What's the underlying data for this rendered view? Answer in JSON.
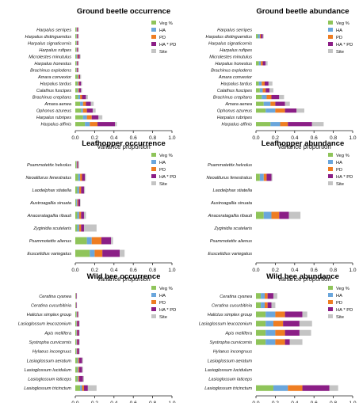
{
  "chart_data": [
    {
      "type": "bar",
      "stacked": true,
      "orientation": "horizontal",
      "title": "Ground beetle occurrence",
      "xlabel": "Variance proportion",
      "ylabel": "",
      "xlim": [
        0,
        1
      ],
      "xticks": [
        "0.0",
        "0.2",
        "0.4",
        "0.6",
        "0.8",
        "1.0"
      ],
      "legend_position": "top-right",
      "categories": [
        "Harpalus serripes",
        "Harpalus distinguendus",
        "Harpalus signaticornis",
        "Harpalus rufipes",
        "Microlestes minutulus",
        "Harpalus honestus",
        "Brachinus explodens",
        "Amara convexior",
        "Harpalus tardus",
        "Calathus fuscipes",
        "Brachinus crepitans",
        "Amara aenea",
        "Ophonus azureus",
        "Harpalus rubripes",
        "Harpalus affinis"
      ],
      "series": [
        {
          "name": "Veg %",
          "color": "#8fc45a",
          "values": [
            0.01,
            0.01,
            0.01,
            0.01,
            0.01,
            0.01,
            0.01,
            0.02,
            0.02,
            0.02,
            0.03,
            0.05,
            0.06,
            0.08,
            0.1
          ]
        },
        {
          "name": "HA",
          "color": "#6aa6dc",
          "values": [
            0.005,
            0.005,
            0.005,
            0.005,
            0.01,
            0.005,
            0.005,
            0.01,
            0.01,
            0.01,
            0.02,
            0.03,
            0.02,
            0.04,
            0.05
          ]
        },
        {
          "name": "PD",
          "color": "#ee7d22",
          "values": [
            0.005,
            0.005,
            0.005,
            0.005,
            0.01,
            0.005,
            0.005,
            0.01,
            0.01,
            0.01,
            0.02,
            0.03,
            0.04,
            0.05,
            0.08
          ]
        },
        {
          "name": "HA * PD",
          "color": "#8b1e86",
          "values": [
            0.01,
            0.01,
            0.01,
            0.01,
            0.015,
            0.01,
            0.01,
            0.01,
            0.02,
            0.02,
            0.04,
            0.05,
            0.06,
            0.07,
            0.18
          ]
        },
        {
          "name": "Site",
          "color": "#c4c4c4",
          "values": [
            0.005,
            0.005,
            0.005,
            0.005,
            0.01,
            0.005,
            0.005,
            0.01,
            0.01,
            0.01,
            0.02,
            0.03,
            0.03,
            0.04,
            0.02
          ]
        }
      ]
    },
    {
      "type": "bar",
      "stacked": true,
      "orientation": "horizontal",
      "title": "Ground beetle abundance",
      "xlabel": "Variance proportion",
      "ylabel": "",
      "xlim": [
        0,
        1
      ],
      "xticks": [
        "0.0",
        "0.2",
        "0.4",
        "0.6",
        "0.8",
        "1.0"
      ],
      "legend_position": "top-right",
      "categories": [
        "Harpalus serripes",
        "Harpalus distinguendus",
        "Harpalus signaticornis",
        "Harpalus rufipes",
        "Microlestes minutulus",
        "Harpalus honestus",
        "Brachinus explodens",
        "Amara convexior",
        "Harpalus tardus",
        "Calathus fuscipes",
        "Brachinus crepitans",
        "Amara aenea",
        "Ophonus azureus",
        "Harpalus rubripes",
        "Harpalus affinis"
      ],
      "series": [
        {
          "name": "Veg %",
          "color": "#8fc45a",
          "values": [
            0,
            0.02,
            0,
            0,
            0,
            0.03,
            0,
            0,
            0.03,
            0.04,
            0.06,
            0.08,
            0.1,
            0,
            0.15
          ]
        },
        {
          "name": "HA",
          "color": "#6aa6dc",
          "values": [
            0,
            0.02,
            0,
            0,
            0,
            0.02,
            0,
            0,
            0.03,
            0.03,
            0.05,
            0.07,
            0.1,
            0,
            0.1
          ]
        },
        {
          "name": "PD",
          "color": "#ee7d22",
          "values": [
            0,
            0.01,
            0,
            0,
            0,
            0.02,
            0,
            0,
            0.03,
            0.03,
            0.05,
            0.05,
            0.1,
            0,
            0.08
          ]
        },
        {
          "name": "HA * PD",
          "color": "#8b1e86",
          "values": [
            0,
            0.02,
            0,
            0,
            0,
            0.03,
            0,
            0,
            0.04,
            0.04,
            0.08,
            0.1,
            0.12,
            0,
            0.25
          ]
        },
        {
          "name": "Site",
          "color": "#c4c4c4",
          "values": [
            0,
            0.01,
            0,
            0,
            0,
            0.02,
            0,
            0,
            0.04,
            0.04,
            0.05,
            0.05,
            0.08,
            0,
            0.12
          ]
        }
      ]
    },
    {
      "type": "bar",
      "stacked": true,
      "orientation": "horizontal",
      "title": "Leafhopper occurrence",
      "xlabel": "Variance proportion",
      "ylabel": "",
      "xlim": [
        0,
        1
      ],
      "xticks": [
        "0.0",
        "0.2",
        "0.4",
        "0.6",
        "0.8",
        "1.0"
      ],
      "legend_position": "top-right",
      "categories": [
        "Psammotettix helvolus",
        "Neoaliturus fenestratus",
        "Laodelphax stiatella",
        "Austroagallia sinuata",
        "Anaceratagallia ribauti",
        "Zyginidia scutelaris",
        "Psammotettix alienus",
        "Euscelidius variegatus"
      ],
      "series": [
        {
          "name": "Veg %",
          "color": "#8fc45a",
          "values": [
            0.01,
            0.03,
            0.02,
            0.01,
            0.02,
            0.02,
            0.12,
            0.15
          ]
        },
        {
          "name": "HA",
          "color": "#6aa6dc",
          "values": [
            0.005,
            0.02,
            0.02,
            0.01,
            0.02,
            0.02,
            0.05,
            0.05
          ]
        },
        {
          "name": "PD",
          "color": "#ee7d22",
          "values": [
            0.005,
            0.02,
            0.02,
            0.01,
            0.02,
            0.02,
            0.1,
            0.08
          ]
        },
        {
          "name": "HA * PD",
          "color": "#8b1e86",
          "values": [
            0.01,
            0.03,
            0.03,
            0.02,
            0.03,
            0.03,
            0.1,
            0.18
          ]
        },
        {
          "name": "Site",
          "color": "#c4c4c4",
          "values": [
            0.01,
            0.01,
            0.01,
            0.005,
            0.02,
            0.13,
            0.02,
            0.05
          ]
        }
      ]
    },
    {
      "type": "bar",
      "stacked": true,
      "orientation": "horizontal",
      "title": "Leafhopper abundance",
      "xlabel": "Variance proportion",
      "ylabel": "",
      "xlim": [
        0,
        1
      ],
      "xticks": [
        "0.0",
        "0.2",
        "0.4",
        "0.6",
        "0.8",
        "1.0"
      ],
      "legend_position": "top-right",
      "categories": [
        "Psammotettix helvolus",
        "Neoaliturus fenestratus",
        "Laodelphax stiatella",
        "Austroagallia sinuata",
        "Anaceratagallia ribauti",
        "Zyginidia scutelaris",
        "Psammotettix alienus",
        "Euscelidius variegatus"
      ],
      "series": [
        {
          "name": "Veg %",
          "color": "#8fc45a",
          "values": [
            0,
            0.04,
            0,
            0,
            0.08,
            0,
            0,
            0
          ]
        },
        {
          "name": "HA",
          "color": "#6aa6dc",
          "values": [
            0,
            0.04,
            0,
            0,
            0.08,
            0,
            0,
            0
          ]
        },
        {
          "name": "PD",
          "color": "#ee7d22",
          "values": [
            0,
            0.03,
            0,
            0,
            0.08,
            0,
            0,
            0
          ]
        },
        {
          "name": "HA * PD",
          "color": "#8b1e86",
          "values": [
            0,
            0.05,
            0,
            0,
            0.1,
            0,
            0,
            0
          ]
        },
        {
          "name": "Site",
          "color": "#c4c4c4",
          "values": [
            0,
            0.01,
            0,
            0,
            0.12,
            0,
            0,
            0
          ]
        }
      ]
    },
    {
      "type": "bar",
      "stacked": true,
      "orientation": "horizontal",
      "title": "Wild bee occurrence",
      "xlabel": "Variance proportion",
      "ylabel": "",
      "xlim": [
        0,
        1
      ],
      "xticks": [
        "0.0",
        "0.2",
        "0.4",
        "0.6",
        "0.8",
        "1.0"
      ],
      "legend_position": "top-right",
      "categories": [
        "Ceratina cyanea",
        "Ceratina cucurbitinia",
        "Halictus simplex group",
        "Lasioglossum leucozonium",
        "Apis mellifera",
        "Systropha curvicornis",
        "Hylaeus incongruus",
        "Lasioglossum aeratum",
        "Lasioglossum lucidulum",
        "Lasioglossum laticeps",
        "Lasioglossum tricinctum"
      ],
      "series": [
        {
          "name": "Veg %",
          "color": "#8fc45a",
          "values": [
            0.005,
            0.005,
            0.01,
            0.01,
            0.01,
            0.01,
            0.01,
            0.02,
            0.02,
            0.02,
            0.05
          ]
        },
        {
          "name": "HA",
          "color": "#6aa6dc",
          "values": [
            0.002,
            0.002,
            0.005,
            0.005,
            0.005,
            0.005,
            0.005,
            0.01,
            0.01,
            0.01,
            0.02
          ]
        },
        {
          "name": "PD",
          "color": "#ee7d22",
          "values": [
            0.002,
            0.002,
            0.005,
            0.005,
            0.005,
            0.005,
            0.005,
            0.01,
            0.01,
            0.01,
            0.02
          ]
        },
        {
          "name": "HA * PD",
          "color": "#8b1e86",
          "values": [
            0.006,
            0.006,
            0.01,
            0.02,
            0.02,
            0.02,
            0.02,
            0.03,
            0.03,
            0.04,
            0.04
          ]
        },
        {
          "name": "Site",
          "color": "#c4c4c4",
          "values": [
            0.002,
            0.002,
            0.005,
            0.005,
            0.005,
            0.005,
            0.005,
            0.01,
            0.01,
            0.01,
            0.09
          ]
        }
      ]
    },
    {
      "type": "bar",
      "stacked": true,
      "orientation": "horizontal",
      "title": "Wild bee abundance",
      "xlabel": "Variance proportion",
      "ylabel": "",
      "xlim": [
        0,
        1
      ],
      "xticks": [
        "0.0",
        "0.2",
        "0.4",
        "0.6",
        "0.8",
        "1.0"
      ],
      "legend_position": "top-right",
      "categories": [
        "Ceratina cyanea",
        "Ceratina cucurbitinia",
        "Halictus simplex group",
        "Lasioglossum leucozonium",
        "Apis mellifera",
        "Systropha curvicornis",
        "Hylaeus incongruus",
        "Lasioglossum aeratum",
        "Lasioglossum lucidulum",
        "Lasioglossum laticeps",
        "Lasioglossum tricinctum"
      ],
      "series": [
        {
          "name": "Veg %",
          "color": "#8fc45a",
          "values": [
            0.05,
            0.05,
            0.1,
            0.1,
            0.1,
            0.1,
            0,
            0,
            0,
            0,
            0.18
          ]
        },
        {
          "name": "HA",
          "color": "#6aa6dc",
          "values": [
            0.04,
            0.04,
            0.1,
            0.08,
            0.1,
            0.1,
            0,
            0,
            0,
            0,
            0.15
          ]
        },
        {
          "name": "PD",
          "color": "#ee7d22",
          "values": [
            0.03,
            0.03,
            0.1,
            0.1,
            0.1,
            0.1,
            0,
            0,
            0,
            0,
            0.15
          ]
        },
        {
          "name": "HA * PD",
          "color": "#8b1e86",
          "values": [
            0.06,
            0.04,
            0.18,
            0.17,
            0.15,
            0.05,
            0,
            0,
            0,
            0,
            0.28
          ]
        },
        {
          "name": "Site",
          "color": "#c4c4c4",
          "values": [
            0.04,
            0.04,
            0.05,
            0.13,
            0.12,
            0.13,
            0,
            0,
            0,
            0,
            0.09
          ]
        }
      ]
    }
  ]
}
